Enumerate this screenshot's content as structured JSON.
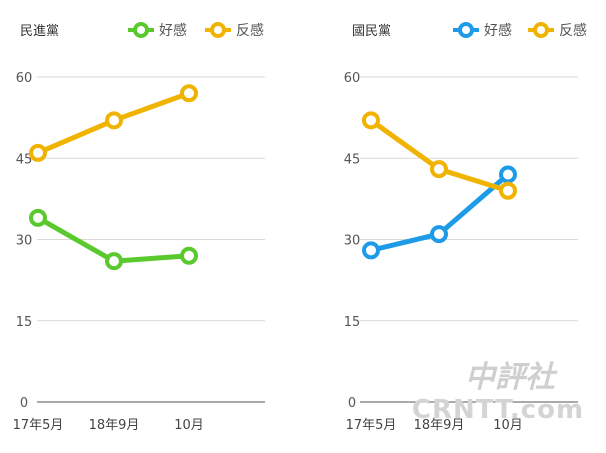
{
  "chart_data": [
    {
      "type": "line",
      "title": "民進黨",
      "categories": [
        "17年5月",
        "18年9月",
        "10月"
      ],
      "ylim": [
        0,
        60
      ],
      "yticks": [
        0,
        15,
        30,
        45,
        60
      ],
      "grid": true,
      "legend_position": "top-right",
      "series": [
        {
          "name": "好感",
          "color": "#5ac92e",
          "values": [
            34,
            26,
            27
          ]
        },
        {
          "name": "反感",
          "color": "#f0b400",
          "values": [
            46,
            52,
            57
          ]
        }
      ]
    },
    {
      "type": "line",
      "title": "國民黨",
      "categories": [
        "17年5月",
        "18年9月",
        "10月"
      ],
      "ylim": [
        0,
        60
      ],
      "yticks": [
        0,
        15,
        30,
        45,
        60
      ],
      "grid": true,
      "legend_position": "top-right",
      "series": [
        {
          "name": "好感",
          "color": "#1e9be8",
          "values": [
            28,
            31,
            42
          ]
        },
        {
          "name": "反感",
          "color": "#f0b400",
          "values": [
            52,
            43,
            39
          ]
        }
      ]
    }
  ],
  "watermark": {
    "chinese": "中評社",
    "latin": "CRNTT.com"
  }
}
